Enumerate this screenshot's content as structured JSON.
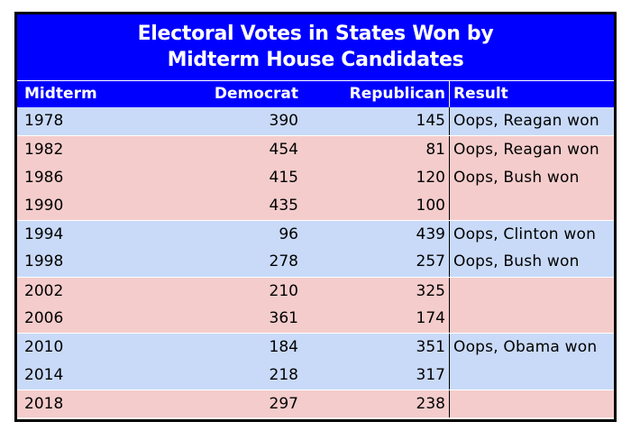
{
  "table": {
    "title_line1": "Electoral Votes in States Won by",
    "title_line2": "Midterm House Candidates",
    "headers": {
      "midterm": "Midterm",
      "democrat": "Democrat",
      "republican": "Republican",
      "result": "Result"
    },
    "colors": {
      "header_bg": "#0000ff",
      "header_text": "#ffffff",
      "row_blue": "#c9daf8",
      "row_pink": "#f4cccc",
      "border": "#000000"
    },
    "rows": [
      {
        "year": "1978",
        "democrat": "390",
        "republican": "145",
        "result": "Oops, Reagan won",
        "shade": "blue"
      },
      {
        "year": "1982",
        "democrat": "454",
        "republican": "81",
        "result": "Oops, Reagan won",
        "shade": "pink"
      },
      {
        "year": "1986",
        "democrat": "415",
        "republican": "120",
        "result": "Oops, Bush won",
        "shade": "pink"
      },
      {
        "year": "1990",
        "democrat": "435",
        "republican": "100",
        "result": "",
        "shade": "pink"
      },
      {
        "year": "1994",
        "democrat": "96",
        "republican": "439",
        "result": "Oops, Clinton won",
        "shade": "blue"
      },
      {
        "year": "1998",
        "democrat": "278",
        "republican": "257",
        "result": "Oops, Bush won",
        "shade": "blue"
      },
      {
        "year": "2002",
        "democrat": "210",
        "republican": "325",
        "result": "",
        "shade": "pink"
      },
      {
        "year": "2006",
        "democrat": "361",
        "republican": "174",
        "result": "",
        "shade": "pink"
      },
      {
        "year": "2010",
        "democrat": "184",
        "republican": "351",
        "result": "Oops, Obama won",
        "shade": "blue"
      },
      {
        "year": "2014",
        "democrat": "218",
        "republican": "317",
        "result": "",
        "shade": "blue"
      },
      {
        "year": "2018",
        "democrat": "297",
        "republican": "238",
        "result": "",
        "shade": "pink"
      }
    ]
  }
}
